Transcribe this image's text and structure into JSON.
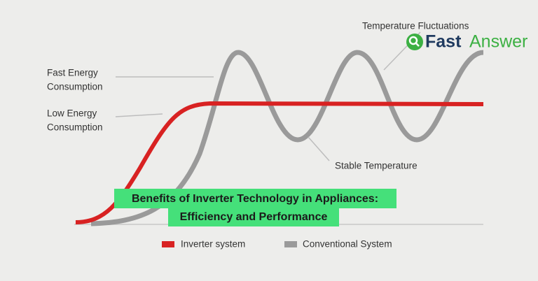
{
  "annotations": {
    "fluctuations": "Temperature Fluctuations",
    "fast_energy": [
      "Fast Energy",
      "Consumption"
    ],
    "low_energy": [
      "Low Energy",
      "Consumption"
    ],
    "stable": "Stable Temperature"
  },
  "logo": {
    "part1": "Fast",
    "part2": "Answer"
  },
  "banner": {
    "line1": "Benefits of Inverter Technology in Appliances:",
    "line2": "Efficiency and Performance"
  },
  "legend": [
    "Inverter system",
    "Conventional System"
  ]
}
